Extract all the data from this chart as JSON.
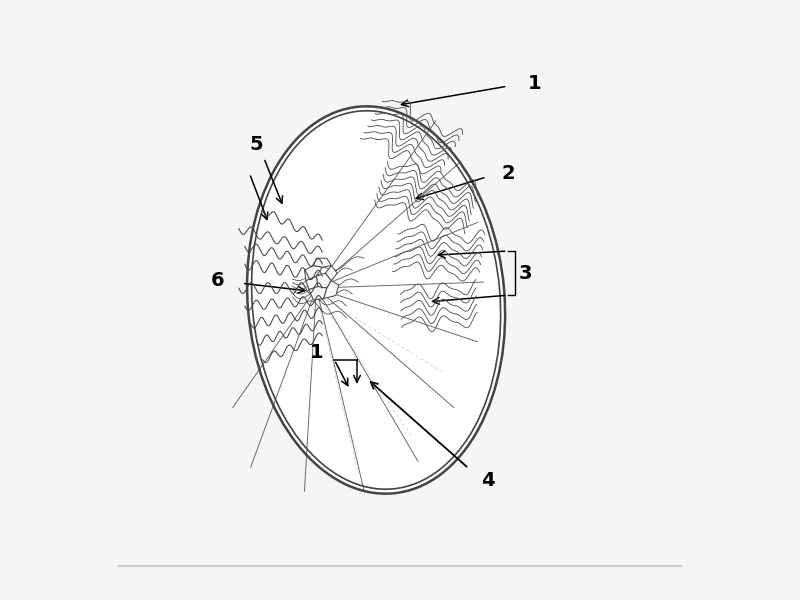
{
  "bg_color": "#f5f5f5",
  "line_color": "#444444",
  "light_line": "#888888",
  "dashed_line": "#999999",
  "fill_white": "#ffffff",
  "tubule_color": "#555555",
  "label_fontsize": 14,
  "label_fontweight": "bold"
}
